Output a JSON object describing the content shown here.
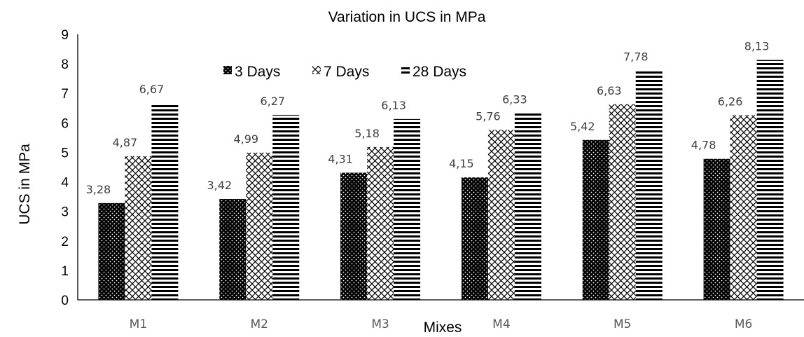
{
  "chart_data": {
    "type": "bar",
    "title": "Variation in UCS in MPa",
    "xlabel": "Mixes",
    "ylabel": "UCS in MPa",
    "ylim": [
      0,
      9
    ],
    "yticks": [
      "0",
      "1",
      "2",
      "3",
      "4",
      "5",
      "6",
      "7",
      "8",
      "9"
    ],
    "categories": [
      "M1",
      "M2",
      "M3",
      "M4",
      "M5",
      "M6"
    ],
    "series": [
      {
        "name": "3 Days",
        "pattern": "dots",
        "values": [
          3.28,
          3.42,
          4.31,
          4.15,
          5.42,
          4.78
        ],
        "labels": [
          "3,28",
          "3,42",
          "4,31",
          "4,15",
          "5,42",
          "4,78"
        ]
      },
      {
        "name": "7 Days",
        "pattern": "crosshatch",
        "values": [
          4.87,
          4.99,
          5.18,
          5.76,
          6.63,
          6.26
        ],
        "labels": [
          "4,87",
          "4,99",
          "5,18",
          "5,76",
          "6,63",
          "6,26"
        ]
      },
      {
        "name": "28 Days",
        "pattern": "horizontal-stripes",
        "values": [
          6.67,
          6.27,
          6.13,
          6.33,
          7.78,
          8.13
        ],
        "labels": [
          "6,67",
          "6,27",
          "6,13",
          "6,33",
          "7,78",
          "8,13"
        ]
      }
    ],
    "legend_position": "top-center",
    "grid": false,
    "colors": {
      "bar": "#000000",
      "axis": "#000000",
      "tick_label": "#595959",
      "data_label": "#404040"
    }
  }
}
